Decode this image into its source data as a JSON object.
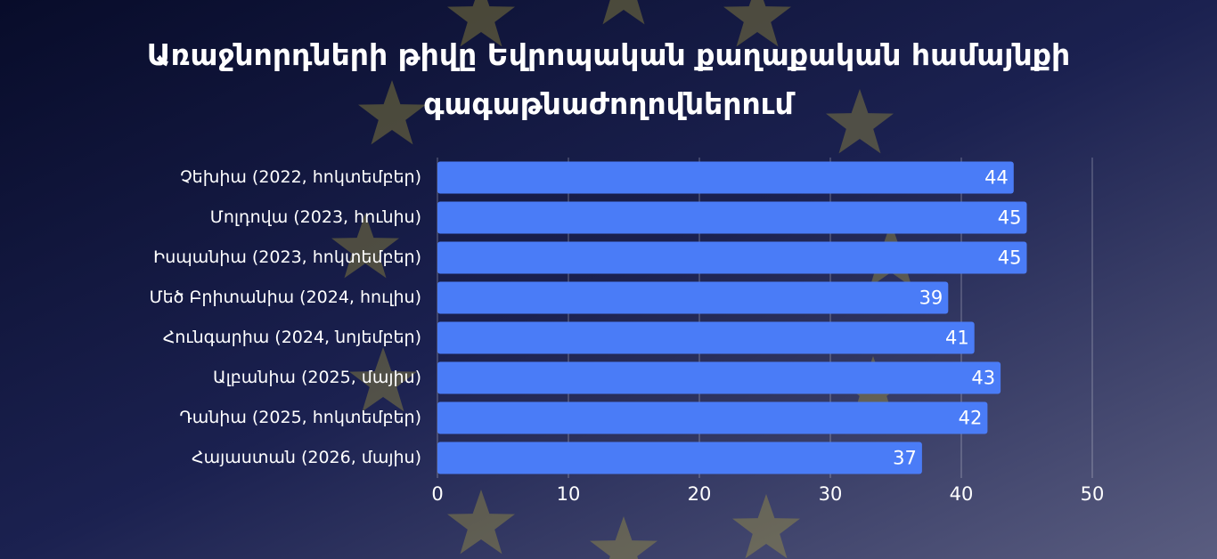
{
  "chart_data": {
    "type": "bar",
    "orientation": "horizontal",
    "title": "Առաջնորդների թիվը Եվրոպական քաղաքական համայնքի գագաթնաժողովներում",
    "categories": [
      "Չեխիա (2022, հոկտեմբեր)",
      "Մոլդովա (2023, հունիս)",
      "Իսպանիա (2023, հոկտեմբեր)",
      "Մեծ Բրիտանիա (2024, հուլիս)",
      "Հունգարիա (2024, նոյեմբեր)",
      "Ալբանիա (2025, մայիս)",
      "Դանիա (2025, հոկտեմբեր)",
      "Հայաստան (2026, մայիս)"
    ],
    "values": [
      44,
      45,
      45,
      39,
      41,
      43,
      42,
      37
    ],
    "color": "#4a7cf7",
    "xlim": [
      0,
      50
    ],
    "xticks": [
      0,
      10,
      20,
      30,
      40,
      50
    ],
    "grid": true
  }
}
